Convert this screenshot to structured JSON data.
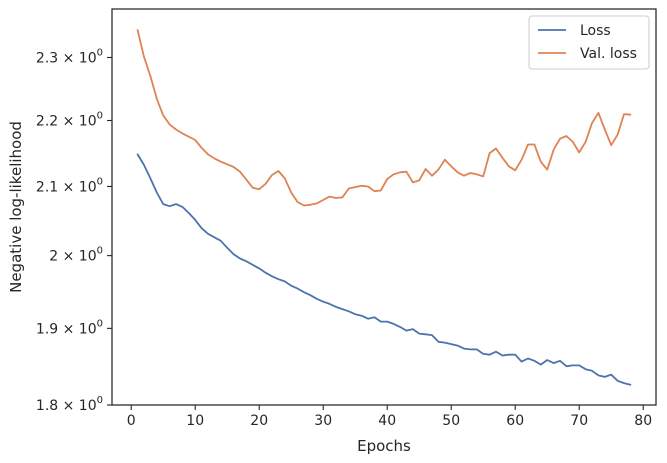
{
  "chart_data": {
    "type": "line",
    "xlabel": "Epochs",
    "ylabel": "Negative log-likelihood",
    "xlim": [
      -3,
      82
    ],
    "ylim": [
      1.8,
      2.38
    ],
    "yscale": "log",
    "xticks": [
      0,
      10,
      20,
      30,
      40,
      50,
      60,
      70,
      80
    ],
    "xtick_labels": [
      "0",
      "10",
      "20",
      "30",
      "40",
      "50",
      "60",
      "70",
      "80"
    ],
    "yticks": [
      {
        "value": 1.8,
        "mantissa": "1.8",
        "sep": "×",
        "base": "10",
        "exp": "0"
      },
      {
        "value": 1.9,
        "mantissa": "1.9",
        "sep": "×",
        "base": "10",
        "exp": "0"
      },
      {
        "value": 2.0,
        "mantissa": "2",
        "sep": "×",
        "base": "10",
        "exp": "0"
      },
      {
        "value": 2.1,
        "mantissa": "2.1",
        "sep": "×",
        "base": "10",
        "exp": "0"
      },
      {
        "value": 2.2,
        "mantissa": "2.2",
        "sep": "×",
        "base": "10",
        "exp": "0"
      },
      {
        "value": 2.3,
        "mantissa": "2.3",
        "sep": "×",
        "base": "10",
        "exp": "0"
      }
    ],
    "grid": false,
    "legend_position": "top-right",
    "series": [
      {
        "name": "Loss",
        "color": "#4c72b0",
        "x": [
          1,
          2,
          3,
          4,
          5,
          6,
          7,
          8,
          9,
          10,
          11,
          12,
          13,
          14,
          15,
          16,
          17,
          18,
          19,
          20,
          21,
          22,
          23,
          24,
          25,
          26,
          27,
          28,
          29,
          30,
          31,
          32,
          33,
          34,
          35,
          36,
          37,
          38,
          39,
          40,
          41,
          42,
          43,
          44,
          45,
          46,
          47,
          48,
          49,
          50,
          51,
          52,
          53,
          54,
          55,
          56,
          57,
          58,
          59,
          60,
          61,
          62,
          63,
          64,
          65,
          66,
          67,
          68,
          69,
          70,
          71,
          72,
          73,
          74,
          75,
          76,
          77,
          78
        ],
        "values": [
          2.148,
          2.132,
          2.112,
          2.091,
          2.074,
          2.071,
          2.074,
          2.07,
          2.061,
          2.051,
          2.039,
          2.031,
          2.026,
          2.021,
          2.011,
          2.002,
          1.996,
          1.992,
          1.987,
          1.982,
          1.976,
          1.971,
          1.967,
          1.964,
          1.958,
          1.954,
          1.949,
          1.945,
          1.94,
          1.936,
          1.933,
          1.929,
          1.926,
          1.923,
          1.919,
          1.917,
          1.913,
          1.915,
          1.909,
          1.909,
          1.906,
          1.902,
          1.897,
          1.899,
          1.893,
          1.892,
          1.891,
          1.882,
          1.881,
          1.879,
          1.877,
          1.873,
          1.872,
          1.872,
          1.866,
          1.865,
          1.869,
          1.864,
          1.865,
          1.865,
          1.856,
          1.86,
          1.857,
          1.852,
          1.858,
          1.854,
          1.857,
          1.85,
          1.851,
          1.851,
          1.846,
          1.844,
          1.838,
          1.836,
          1.839,
          1.831,
          1.828,
          1.826
        ]
      },
      {
        "name": "Val. loss",
        "color": "#dd8452",
        "x": [
          1,
          2,
          3,
          4,
          5,
          6,
          7,
          8,
          9,
          10,
          11,
          12,
          13,
          14,
          15,
          16,
          17,
          18,
          19,
          20,
          21,
          22,
          23,
          24,
          25,
          26,
          27,
          28,
          29,
          30,
          31,
          32,
          33,
          34,
          35,
          36,
          37,
          38,
          39,
          40,
          41,
          42,
          43,
          44,
          45,
          46,
          47,
          48,
          49,
          50,
          51,
          52,
          53,
          54,
          55,
          56,
          57,
          58,
          59,
          60,
          61,
          62,
          63,
          64,
          65,
          66,
          67,
          68,
          69,
          70,
          71,
          72,
          73,
          74,
          75,
          76,
          77,
          78
        ],
        "values": [
          2.345,
          2.301,
          2.27,
          2.234,
          2.208,
          2.194,
          2.186,
          2.18,
          2.175,
          2.17,
          2.158,
          2.148,
          2.142,
          2.137,
          2.133,
          2.129,
          2.122,
          2.11,
          2.098,
          2.096,
          2.104,
          2.117,
          2.123,
          2.112,
          2.091,
          2.077,
          2.072,
          2.073,
          2.075,
          2.08,
          2.085,
          2.083,
          2.084,
          2.097,
          2.099,
          2.101,
          2.1,
          2.093,
          2.094,
          2.111,
          2.118,
          2.121,
          2.122,
          2.106,
          2.109,
          2.126,
          2.116,
          2.125,
          2.14,
          2.13,
          2.121,
          2.116,
          2.12,
          2.118,
          2.115,
          2.15,
          2.157,
          2.143,
          2.13,
          2.124,
          2.14,
          2.163,
          2.163,
          2.137,
          2.125,
          2.155,
          2.172,
          2.176,
          2.167,
          2.151,
          2.167,
          2.196,
          2.212,
          2.186,
          2.162,
          2.178,
          2.21,
          2.209
        ]
      }
    ]
  }
}
